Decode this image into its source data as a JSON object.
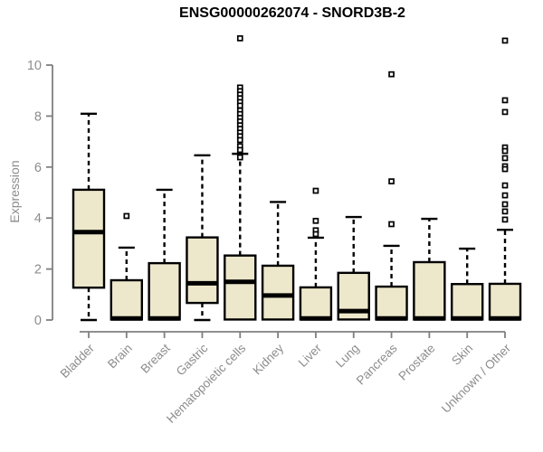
{
  "chart_data": {
    "type": "boxplot",
    "title": "ENSG00000262074 - SNORD3B-2",
    "ylabel": "Expression",
    "xlabel": "",
    "ylim": [
      0,
      10
    ],
    "yticks": [
      0,
      2,
      4,
      6,
      8,
      10
    ],
    "grid": false,
    "legend": "none",
    "x_label_rotation_deg": 45,
    "categories": [
      "Bladder",
      "Brain",
      "Breast",
      "Gastric",
      "Hematopoietic cells",
      "Kidney",
      "Liver",
      "Lung",
      "Pancreas",
      "Prostate",
      "Skin",
      "Unknown / Other"
    ],
    "boxes": [
      {
        "category": "Bladder",
        "whisker_low": 0,
        "q1": 1.27,
        "median": 3.45,
        "q3": 5.11,
        "whisker_high": 8.09,
        "outliers": []
      },
      {
        "category": "Brain",
        "whisker_low": 0,
        "q1": 0.02,
        "median": 0.06,
        "q3": 1.56,
        "whisker_high": 2.84,
        "outliers": [
          4.08
        ]
      },
      {
        "category": "Breast",
        "whisker_low": 0,
        "q1": 0.02,
        "median": 0.06,
        "q3": 2.23,
        "whisker_high": 5.11,
        "outliers": []
      },
      {
        "category": "Gastric",
        "whisker_low": 0,
        "q1": 0.67,
        "median": 1.44,
        "q3": 3.24,
        "whisker_high": 6.46,
        "outliers": []
      },
      {
        "category": "Hematopoietic cells",
        "whisker_low": 0,
        "q1": 0.02,
        "median": 1.5,
        "q3": 2.53,
        "whisker_high": 6.52,
        "outliers": [
          11.05,
          9.12,
          8.98,
          8.84,
          8.7,
          8.55,
          8.41,
          8.22,
          8.08,
          7.93,
          7.79,
          7.64,
          7.5,
          7.35,
          7.21,
          7.06,
          6.82,
          6.67,
          6.38
        ]
      },
      {
        "category": "Kidney",
        "whisker_low": 0,
        "q1": 0.02,
        "median": 0.96,
        "q3": 2.13,
        "whisker_high": 4.63,
        "outliers": []
      },
      {
        "category": "Liver",
        "whisker_low": 0,
        "q1": 0.02,
        "median": 0.06,
        "q3": 1.28,
        "whisker_high": 3.23,
        "outliers": [
          5.07,
          3.89,
          3.52,
          3.37
        ]
      },
      {
        "category": "Lung",
        "whisker_low": 0,
        "q1": 0.02,
        "median": 0.35,
        "q3": 1.85,
        "whisker_high": 4.04,
        "outliers": []
      },
      {
        "category": "Pancreas",
        "whisker_low": 0,
        "q1": 0.02,
        "median": 0.06,
        "q3": 1.31,
        "whisker_high": 2.91,
        "outliers": [
          9.64,
          5.44,
          3.76
        ]
      },
      {
        "category": "Prostate",
        "whisker_low": 0,
        "q1": 0.02,
        "median": 0.06,
        "q3": 2.27,
        "whisker_high": 3.97,
        "outliers": []
      },
      {
        "category": "Skin",
        "whisker_low": 0,
        "q1": 0.02,
        "median": 0.06,
        "q3": 1.41,
        "whisker_high": 2.8,
        "outliers": []
      },
      {
        "category": "Unknown / Other",
        "whisker_low": 0,
        "q1": 0.02,
        "median": 0.06,
        "q3": 1.42,
        "whisker_high": 3.54,
        "outliers": [
          10.96,
          8.62,
          8.16,
          6.77,
          6.63,
          6.35,
          6.03,
          5.92,
          5.28,
          4.89,
          4.54,
          4.26,
          3.94
        ]
      }
    ],
    "colors": {
      "box_fill": "#ede7cb",
      "box_stroke": "#000000",
      "median": "#000000",
      "whisker": "#000000",
      "outlier_stroke": "#000000",
      "outlier_fill": "#ffffff",
      "axis_line": "#7f7f7f",
      "axis_text": "#8c8c8c",
      "title": "#000000",
      "background": "#ffffff"
    }
  }
}
